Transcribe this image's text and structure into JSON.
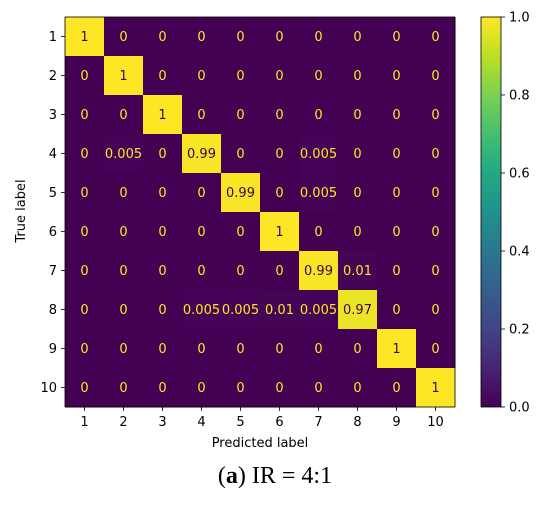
{
  "chart_data": {
    "type": "heatmap",
    "xlabel": "Predicted label",
    "ylabel": "True label",
    "x_categories": [
      "1",
      "2",
      "3",
      "4",
      "5",
      "6",
      "7",
      "8",
      "9",
      "10"
    ],
    "y_categories": [
      "1",
      "2",
      "3",
      "4",
      "5",
      "6",
      "7",
      "8",
      "9",
      "10"
    ],
    "value_labels": [
      [
        "1",
        "0",
        "0",
        "0",
        "0",
        "0",
        "0",
        "0",
        "0",
        "0"
      ],
      [
        "0",
        "1",
        "0",
        "0",
        "0",
        "0",
        "0",
        "0",
        "0",
        "0"
      ],
      [
        "0",
        "0",
        "1",
        "0",
        "0",
        "0",
        "0",
        "0",
        "0",
        "0"
      ],
      [
        "0",
        "0.005",
        "0",
        "0.99",
        "0",
        "0",
        "0.005",
        "0",
        "0",
        "0"
      ],
      [
        "0",
        "0",
        "0",
        "0",
        "0.99",
        "0",
        "0.005",
        "0",
        "0",
        "0"
      ],
      [
        "0",
        "0",
        "0",
        "0",
        "0",
        "1",
        "0",
        "0",
        "0",
        "0"
      ],
      [
        "0",
        "0",
        "0",
        "0",
        "0",
        "0",
        "0.99",
        "0.01",
        "0",
        "0"
      ],
      [
        "0",
        "0",
        "0",
        "0.005",
        "0.005",
        "0.01",
        "0.005",
        "0.97",
        "0",
        "0"
      ],
      [
        "0",
        "0",
        "0",
        "0",
        "0",
        "0",
        "0",
        "0",
        "1",
        "0"
      ],
      [
        "0",
        "0",
        "0",
        "0",
        "0",
        "0",
        "0",
        "0",
        "0",
        "1"
      ]
    ],
    "colorscale": "viridis",
    "colorbar_range": [
      0.0,
      1.0
    ],
    "colorbar_ticks": [
      "0.0",
      "0.2",
      "0.4",
      "0.6",
      "0.8",
      "1.0"
    ],
    "text_color_low": "#fde725",
    "text_color_high": "#440154"
  },
  "caption": {
    "label": "a",
    "text": "IR = 4:1"
  }
}
